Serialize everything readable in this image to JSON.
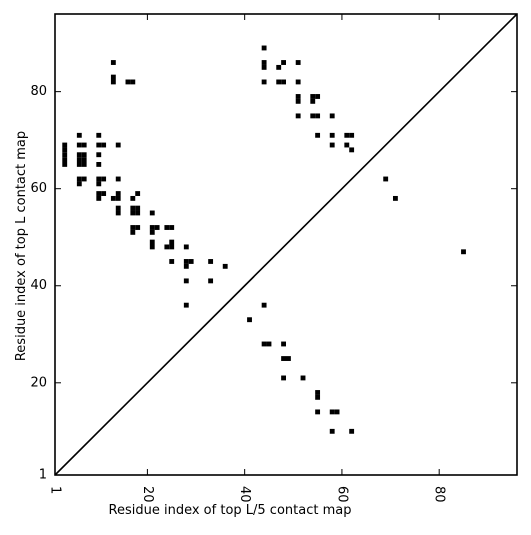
{
  "chart_data": {
    "type": "scatter",
    "title": "",
    "xlabel": "Residue index of top L/5 contact map",
    "ylabel": "Residue index of top L contact map",
    "xlim": [
      1,
      96
    ],
    "ylim": [
      1,
      96
    ],
    "x_ticks": [
      1,
      20,
      40,
      60,
      80
    ],
    "y_ticks": [
      1,
      20,
      40,
      60,
      80
    ],
    "x_tick_labels": [
      "1",
      "20",
      "40",
      "60",
      "80"
    ],
    "y_tick_labels": [
      "1",
      "20",
      "40",
      "60",
      "80"
    ],
    "x_tick_label_rotation": -90,
    "grid": false,
    "legend": "none",
    "diagonal": true,
    "colors": {
      "marker": "#000000",
      "axes": "#000000",
      "background": "#ffffff"
    },
    "series": [
      {
        "marker": "square",
        "upper_triangle_points": [
          [
            13,
            86
          ],
          [
            13,
            83
          ],
          [
            13,
            82
          ],
          [
            16,
            82
          ],
          [
            17,
            82
          ],
          [
            44,
            89
          ],
          [
            44,
            86
          ],
          [
            44,
            85
          ],
          [
            44,
            82
          ],
          [
            47,
            85
          ],
          [
            48,
            86
          ],
          [
            47,
            82
          ],
          [
            48,
            82
          ],
          [
            51,
            86
          ],
          [
            51,
            82
          ],
          [
            51,
            79
          ],
          [
            51,
            78
          ],
          [
            51,
            75
          ],
          [
            55,
            79
          ],
          [
            54,
            79
          ],
          [
            54,
            78
          ],
          [
            54,
            75
          ],
          [
            55,
            75
          ],
          [
            58,
            75
          ],
          [
            55,
            71
          ],
          [
            58,
            71
          ],
          [
            61,
            71
          ],
          [
            62,
            71
          ],
          [
            58,
            69
          ],
          [
            61,
            69
          ],
          [
            62,
            68
          ],
          [
            6,
            71
          ],
          [
            10,
            71
          ],
          [
            3,
            69
          ],
          [
            6,
            69
          ],
          [
            7,
            69
          ],
          [
            10,
            69
          ],
          [
            11,
            69
          ],
          [
            14,
            69
          ],
          [
            3,
            68
          ],
          [
            3,
            67
          ],
          [
            3,
            66
          ],
          [
            3,
            65
          ],
          [
            6,
            67
          ],
          [
            7,
            67
          ],
          [
            6,
            66
          ],
          [
            7,
            66
          ],
          [
            6,
            65
          ],
          [
            7,
            65
          ],
          [
            10,
            67
          ],
          [
            10,
            65
          ],
          [
            6,
            62
          ],
          [
            7,
            62
          ],
          [
            6,
            61
          ],
          [
            10,
            62
          ],
          [
            11,
            62
          ],
          [
            14,
            62
          ],
          [
            10,
            61
          ],
          [
            10,
            59
          ],
          [
            11,
            59
          ],
          [
            10,
            58
          ],
          [
            13,
            58
          ],
          [
            14,
            58
          ],
          [
            14,
            59
          ],
          [
            14,
            56
          ],
          [
            14,
            55
          ],
          [
            17,
            58
          ],
          [
            18,
            59
          ],
          [
            17,
            56
          ],
          [
            18,
            56
          ],
          [
            17,
            55
          ],
          [
            18,
            55
          ],
          [
            21,
            55
          ],
          [
            17,
            52
          ],
          [
            18,
            52
          ],
          [
            17,
            51
          ],
          [
            21,
            52
          ],
          [
            22,
            52
          ],
          [
            21,
            51
          ],
          [
            24,
            52
          ],
          [
            25,
            52
          ],
          [
            21,
            49
          ],
          [
            21,
            48
          ],
          [
            24,
            48
          ],
          [
            25,
            48
          ],
          [
            25,
            49
          ],
          [
            28,
            48
          ],
          [
            25,
            45
          ],
          [
            28,
            45
          ],
          [
            29,
            45
          ],
          [
            28,
            44
          ],
          [
            33,
            45
          ],
          [
            36,
            44
          ],
          [
            28,
            41
          ],
          [
            33,
            41
          ],
          [
            28,
            36
          ],
          [
            69,
            62
          ],
          [
            71,
            58
          ],
          [
            85,
            47
          ]
        ],
        "lower_triangle_points": [
          [
            41,
            33
          ],
          [
            44,
            36
          ],
          [
            44,
            28
          ],
          [
            45,
            28
          ],
          [
            48,
            28
          ],
          [
            48,
            25
          ],
          [
            49,
            25
          ],
          [
            48,
            21
          ],
          [
            52,
            21
          ],
          [
            55,
            18
          ],
          [
            55,
            17
          ],
          [
            55,
            14
          ],
          [
            58,
            14
          ],
          [
            59,
            14
          ],
          [
            58,
            10
          ],
          [
            62,
            10
          ]
        ]
      }
    ]
  }
}
